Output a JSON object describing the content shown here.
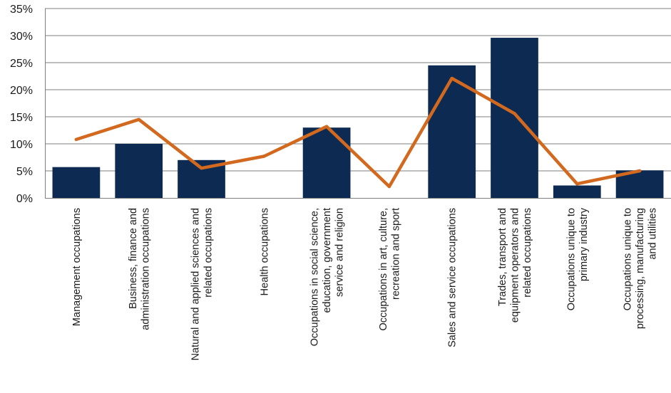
{
  "chart_data": {
    "type": "bar",
    "title": "",
    "xlabel": "",
    "ylabel": "",
    "ylim": [
      0,
      35
    ],
    "yticks": [
      "0%",
      "5%",
      "10%",
      "15%",
      "20%",
      "25%",
      "30%",
      "35%"
    ],
    "grid": true,
    "legend": "none",
    "categories": [
      [
        "Management occupations"
      ],
      [
        "Business, finance and",
        "administration occupations"
      ],
      [
        "Natural and applied sciences and",
        "related occupations"
      ],
      [
        "Health occupations"
      ],
      [
        "Occupations in social science,",
        "education, government",
        "service and religion"
      ],
      [
        "Occupations in art, culture,",
        "recreation and sport"
      ],
      [
        "Sales and service occupations"
      ],
      [
        "Trades, transport and",
        "equipment operators and",
        "related occupations"
      ],
      [
        "Occupations unique to",
        "primary industry"
      ],
      [
        "Occupations unique to",
        "processing, manufacturing",
        "and utilities"
      ]
    ],
    "series": [
      {
        "type": "bar",
        "values": [
          5.7,
          10.0,
          7.0,
          0.0,
          13.0,
          0.0,
          24.5,
          29.6,
          2.3,
          5.1
        ]
      },
      {
        "type": "line",
        "values": [
          10.8,
          14.5,
          5.5,
          7.7,
          13.2,
          2.1,
          22.1,
          15.6,
          2.6,
          5.0
        ]
      }
    ],
    "colors": {
      "bar": "#0d2b52",
      "line": "#d2691e",
      "grid": "#7f7f7f",
      "axis": "#7f7f7f"
    }
  }
}
